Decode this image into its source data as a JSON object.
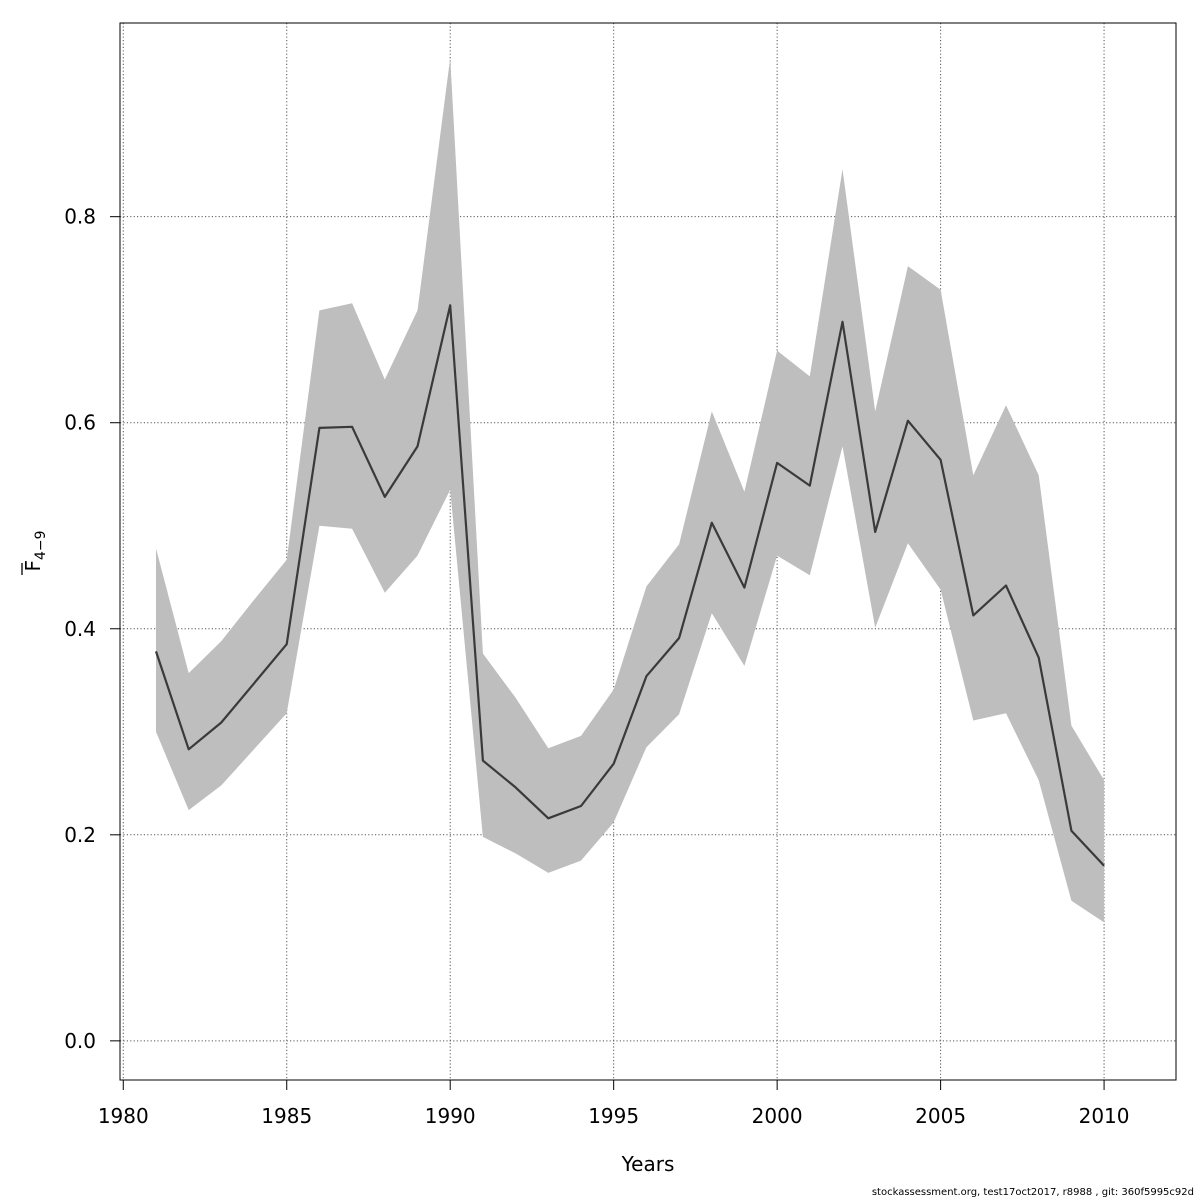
{
  "chart_data": {
    "type": "area",
    "xlabel": "Years",
    "ylabel_main": "F",
    "ylabel_sub": "4−9",
    "xlim": [
      1979.9,
      2012.2
    ],
    "ylim": [
      -0.038,
      0.988
    ],
    "xticks": [
      1980,
      1985,
      1990,
      1995,
      2000,
      2005,
      2010
    ],
    "yticks": [
      0.0,
      0.2,
      0.4,
      0.6,
      0.8
    ],
    "ytick_labels": [
      "0.0",
      "0.2",
      "0.4",
      "0.6",
      "0.8"
    ],
    "grid": true,
    "line_color": "#3a3a3a",
    "band_color": "#bebebe",
    "x": [
      1981,
      1982,
      1983,
      1984,
      1985,
      1986,
      1987,
      1988,
      1989,
      1990,
      1991,
      1992,
      1993,
      1994,
      1995,
      1996,
      1997,
      1998,
      1999,
      2000,
      2001,
      2002,
      2003,
      2004,
      2005,
      2006,
      2007,
      2008,
      2009,
      2010
    ],
    "series": [
      {
        "role": "estimate",
        "values": [
          0.378,
          0.283,
          0.309,
          0.347,
          0.385,
          0.595,
          0.596,
          0.528,
          0.577,
          0.714,
          0.272,
          0.246,
          0.216,
          0.228,
          0.269,
          0.354,
          0.391,
          0.503,
          0.44,
          0.561,
          0.539,
          0.698,
          0.494,
          0.602,
          0.564,
          0.413,
          0.442,
          0.372,
          0.204,
          0.17
        ]
      },
      {
        "role": "upper",
        "values": [
          0.478,
          0.357,
          0.388,
          0.428,
          0.467,
          0.709,
          0.716,
          0.642,
          0.709,
          0.954,
          0.376,
          0.333,
          0.284,
          0.296,
          0.341,
          0.441,
          0.482,
          0.611,
          0.533,
          0.67,
          0.645,
          0.846,
          0.611,
          0.752,
          0.729,
          0.549,
          0.617,
          0.549,
          0.306,
          0.253
        ]
      },
      {
        "role": "lower",
        "values": [
          0.3,
          0.224,
          0.248,
          0.283,
          0.318,
          0.5,
          0.497,
          0.435,
          0.471,
          0.535,
          0.198,
          0.182,
          0.163,
          0.175,
          0.212,
          0.285,
          0.317,
          0.415,
          0.364,
          0.471,
          0.452,
          0.577,
          0.401,
          0.483,
          0.438,
          0.311,
          0.318,
          0.253,
          0.136,
          0.115
        ]
      }
    ]
  },
  "footer_text": "stockassessment.org, test17oct2017, r8988 , git: 360f5995c92d"
}
